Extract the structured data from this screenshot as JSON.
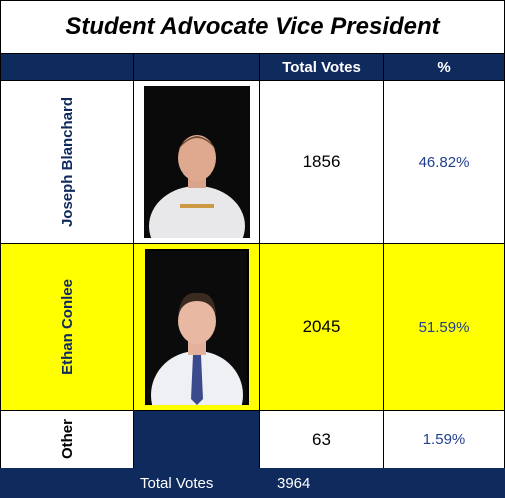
{
  "title": "Student Advocate Vice President",
  "header": [
    "Total Votes",
    "%"
  ],
  "rows": [
    {
      "name": "Joseph Blanchard",
      "votes": "1856",
      "percent": "46.82%"
    },
    {
      "name": "Ethan Conlee",
      "votes": "2045",
      "percent": "51.59%"
    },
    {
      "name": "Other",
      "votes": "63",
      "percent": "1.59%"
    }
  ],
  "footer": {
    "label": "Total Votes",
    "total": "3964"
  }
}
